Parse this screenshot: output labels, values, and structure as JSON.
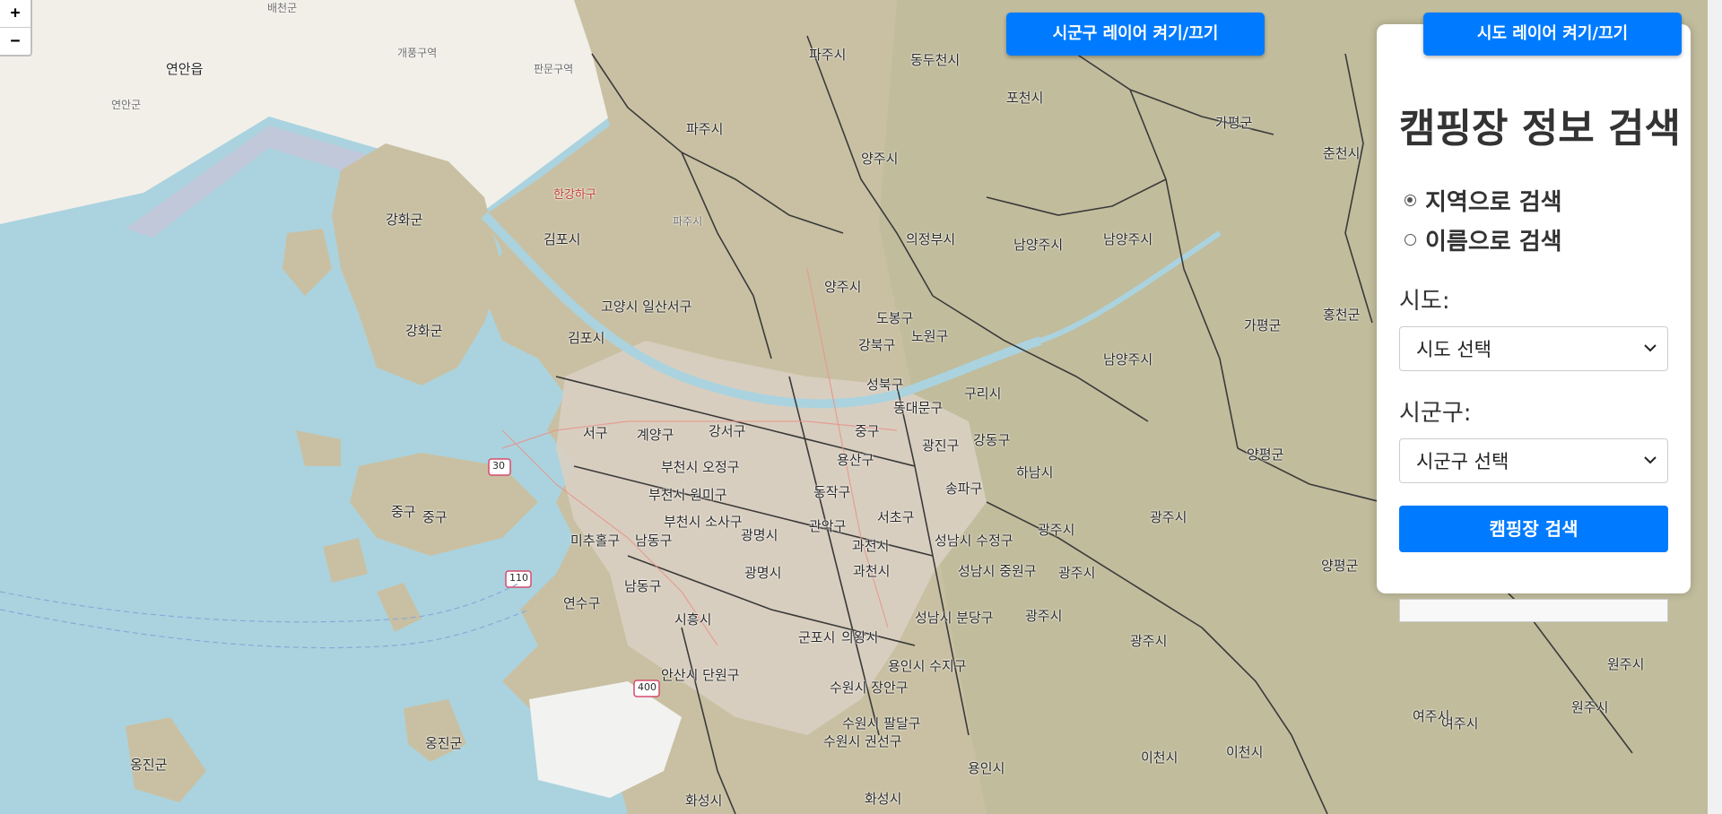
{
  "map": {
    "zoom_in": "+",
    "zoom_out": "−",
    "labels": {
      "baecheon": "배천군",
      "yeonan": "연안읍",
      "yeonan_gun": "연안군",
      "gaepung": "개풍구역",
      "panmun": "판문구역",
      "paju_top": "파주시",
      "paju1": "파주시",
      "paju2": "파주시",
      "dongducheon": "동두천시",
      "pocheon": "포천시",
      "gapyeong": "가평군",
      "gapyeong2": "가평군",
      "chuncheon": "춘천시",
      "hongcheon": "홍천군",
      "yangju": "양주시",
      "yangju2": "양주시",
      "uijeongbu": "의정부시",
      "namyangju": "남양주시",
      "namyangju2": "남양주시",
      "namyangju3": "남양주시",
      "guri": "구리시",
      "ganghwa": "강화군",
      "ganghwa2": "강화군",
      "gimpo": "김포시",
      "gimpo2": "김포시",
      "goyang": "고양시 일산서구",
      "hangang": "한강하구",
      "gangseo": "강서구",
      "gyeyang": "계양구",
      "seo": "서구",
      "bucheon": "부천시 오정구",
      "bucheon2": "부천시 원미구",
      "bucheon3": "부천시 소사구",
      "michuhol": "미추홀구",
      "namdong": "남동구",
      "namdong2": "남동구",
      "yeonsu": "연수구",
      "jung": "중구",
      "siheung": "시흥시",
      "gwangmyeong": "광명시",
      "gwangmyeong2": "광명시",
      "ansan": "안산시 단원구",
      "gwacheon": "과천시",
      "gwacheon2": "과천시",
      "gunpo": "군포시",
      "uiwang": "의왕시",
      "seongnam": "성남시 수정구",
      "seongnam2": "성남시 중원구",
      "seongnam3": "성남시 분당구",
      "gwangju": "광주시",
      "gwangju2": "광주시",
      "gwangju3": "광주시",
      "gwangju4": "광주시",
      "hanam": "하남시",
      "yangpyeong": "양평군",
      "yangpyeong2": "양평군",
      "yeoju": "여주시",
      "yeoju2": "여주시",
      "wonju": "원주시",
      "wonju2": "원주시",
      "icheon": "이천시",
      "icheon2": "이천시",
      "yongin": "용인시",
      "yongin2": "용인시 수지구",
      "suwon": "수원시 장안구",
      "suwon2": "수원시 권선구",
      "suwon3": "수원시 팔달구",
      "hwaseong": "화성시",
      "hwaseong2": "화성시",
      "songpa": "송파구",
      "gangdong": "강동구",
      "gwangjin": "광진구",
      "seocho": "서초구",
      "gwanak": "관악구",
      "dongjak": "동작구",
      "yongsan": "용산구",
      "jung_seoul": "중구",
      "dongdaemun": "동대문구",
      "seongbuk": "성북구",
      "dobong": "도봉구",
      "nowon": "노원구",
      "gangbuk": "강북구",
      "ongjin": "옹진군",
      "ongjin2": "옹진군",
      "jung_ongjin": "중구",
      "route_110": "110",
      "route_400": "400",
      "route_30": "30"
    }
  },
  "layer_buttons": {
    "sigungu": "시군구 레이어 켜기/끄기",
    "sido": "시도 레이어 켜기/끄기"
  },
  "panel": {
    "title": "캠핑장 정보 검색",
    "radio_region": "지역으로 검색",
    "radio_name": "이름으로 검색",
    "sido_label": "시도:",
    "sido_select": "시도 선택",
    "sigungu_label": "시군구:",
    "sigungu_select": "시군구 선택",
    "search_button": "캠핑장 검색"
  }
}
